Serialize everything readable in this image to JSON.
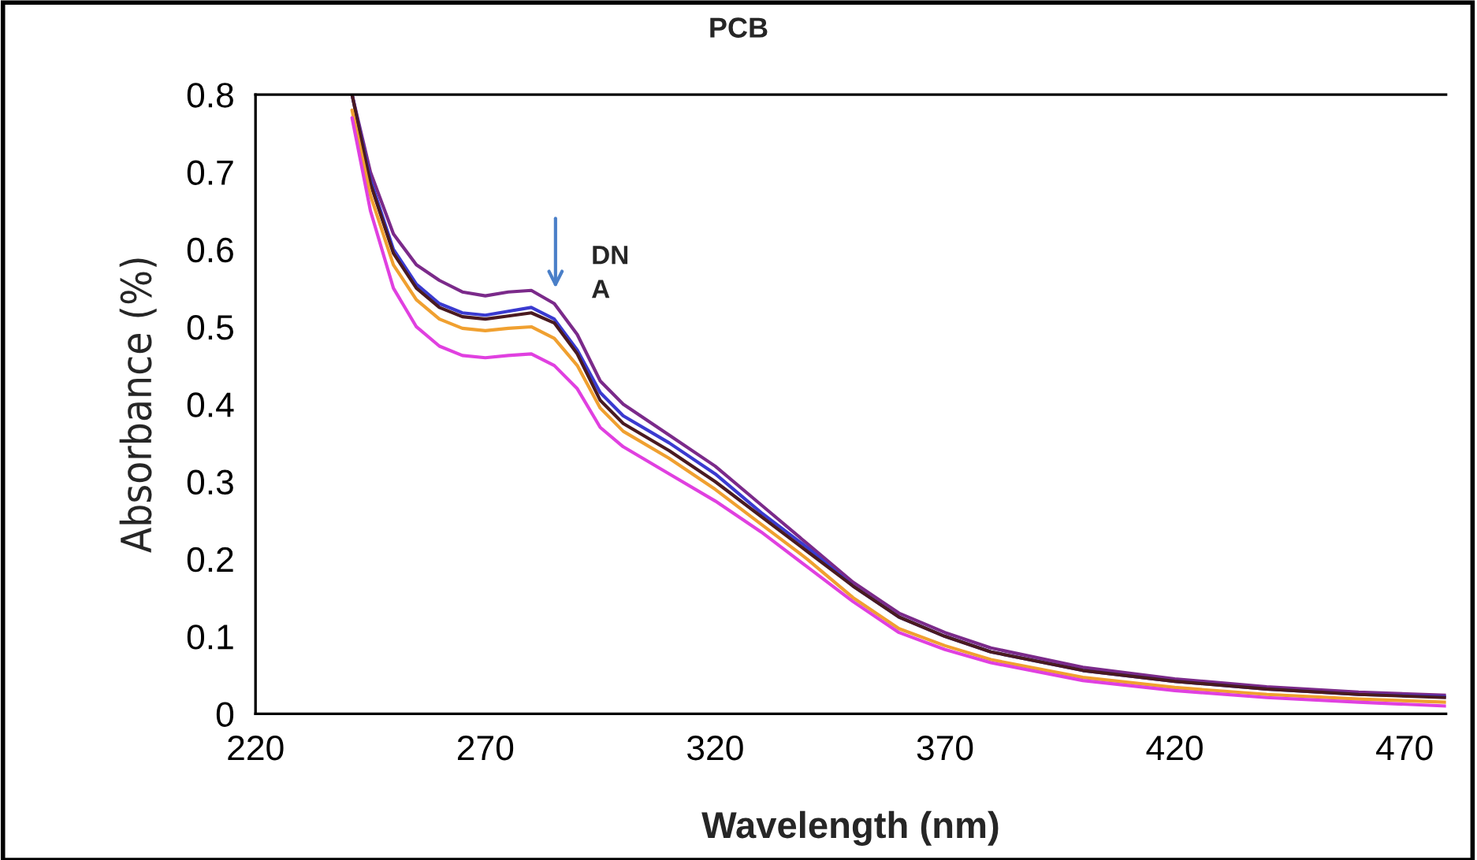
{
  "chart_data": {
    "type": "line",
    "title": "PCB",
    "xlabel": "Wavelength (nm)",
    "ylabel": "Absorbance (%)",
    "x": [
      241,
      245,
      250,
      255,
      260,
      265,
      270,
      275,
      280,
      285,
      290,
      295,
      300,
      310,
      320,
      330,
      340,
      350,
      360,
      370,
      380,
      400,
      420,
      440,
      460,
      479
    ],
    "series": [
      {
        "color": "#7b2a8a",
        "values": [
          0.8,
          0.7,
          0.62,
          0.58,
          0.56,
          0.545,
          0.54,
          0.545,
          0.547,
          0.53,
          0.49,
          0.43,
          0.4,
          0.36,
          0.32,
          0.27,
          0.22,
          0.17,
          0.13,
          0.105,
          0.085,
          0.06,
          0.045,
          0.035,
          0.028,
          0.024
        ]
      },
      {
        "color": "#3a3ad0",
        "values": [
          0.8,
          0.69,
          0.6,
          0.555,
          0.53,
          0.518,
          0.515,
          0.52,
          0.525,
          0.51,
          0.47,
          0.415,
          0.385,
          0.35,
          0.31,
          0.26,
          0.215,
          0.165,
          0.125,
          0.1,
          0.08,
          0.056,
          0.042,
          0.032,
          0.025,
          0.022
        ]
      },
      {
        "color": "#4a1a20",
        "values": [
          0.8,
          0.685,
          0.595,
          0.55,
          0.525,
          0.513,
          0.51,
          0.514,
          0.518,
          0.505,
          0.465,
          0.405,
          0.375,
          0.34,
          0.3,
          0.255,
          0.21,
          0.165,
          0.125,
          0.1,
          0.08,
          0.056,
          0.042,
          0.032,
          0.025,
          0.021
        ]
      },
      {
        "color": "#f0a030",
        "values": [
          0.78,
          0.67,
          0.58,
          0.535,
          0.51,
          0.498,
          0.495,
          0.498,
          0.5,
          0.485,
          0.45,
          0.395,
          0.365,
          0.33,
          0.29,
          0.245,
          0.2,
          0.15,
          0.11,
          0.088,
          0.07,
          0.047,
          0.034,
          0.025,
          0.019,
          0.015
        ]
      },
      {
        "color": "#e040e0",
        "values": [
          0.77,
          0.65,
          0.55,
          0.5,
          0.475,
          0.463,
          0.46,
          0.463,
          0.465,
          0.45,
          0.42,
          0.37,
          0.345,
          0.31,
          0.275,
          0.235,
          0.19,
          0.145,
          0.105,
          0.083,
          0.066,
          0.043,
          0.03,
          0.021,
          0.015,
          0.01
        ]
      }
    ],
    "xlim": [
      220,
      479
    ],
    "xticks": [
      220,
      270,
      320,
      370,
      420,
      470
    ],
    "ylim": [
      0,
      0.8
    ],
    "yticks": [
      {
        "value": 0,
        "label": "0"
      },
      0.1,
      0.2,
      0.3,
      0.4,
      0.5,
      0.6,
      0.7,
      0.8
    ],
    "annotations": [
      "DN\nA"
    ],
    "grid": false,
    "legend": false,
    "marker": "none",
    "line_style": "solid"
  }
}
